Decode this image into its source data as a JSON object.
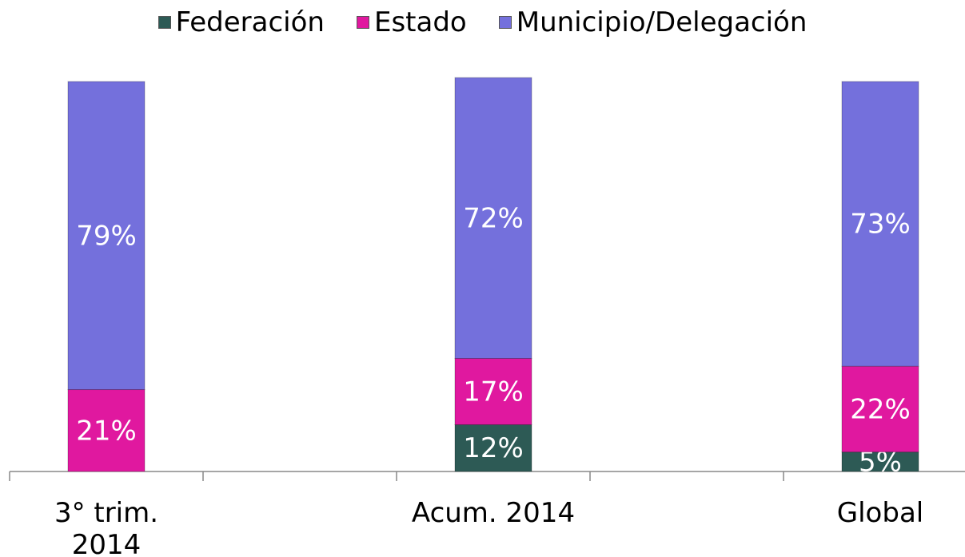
{
  "chart_data": {
    "type": "stacked_bar",
    "categories": [
      "3° trim. 2014",
      null,
      "Acum. 2014",
      null,
      "Global"
    ],
    "series": [
      {
        "name": "Federación",
        "color": "#2d5a55",
        "values": [
          0,
          null,
          12,
          null,
          5
        ],
        "value_labels": [
          null,
          null,
          "12%",
          null,
          "5%"
        ]
      },
      {
        "name": "Estado",
        "color": "#e0189f",
        "values": [
          21,
          null,
          17,
          null,
          22
        ],
        "value_labels": [
          "21%",
          null,
          "17%",
          null,
          "22%"
        ]
      },
      {
        "name": "Municipio/Delegación",
        "color": "#7470dc",
        "values": [
          79,
          null,
          72,
          null,
          73
        ],
        "value_labels": [
          "79%",
          null,
          "72%",
          null,
          "73%"
        ]
      }
    ],
    "ylim": [
      0,
      100
    ],
    "legend": "top"
  }
}
